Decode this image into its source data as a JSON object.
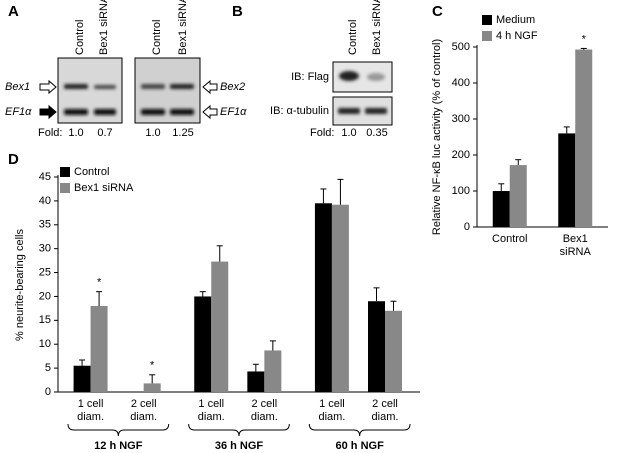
{
  "panel_letters": [
    "A",
    "B",
    "C",
    "D"
  ],
  "panel_a": {
    "column_labels": [
      "Control",
      "Bex1 siRNA",
      "Control",
      "Bex1 siRNA"
    ],
    "left_bands": [
      "Bex1",
      "EF1α"
    ],
    "right_bands": [
      "Bex2",
      "EF1α"
    ],
    "fold_label": "Fold:",
    "folds": [
      "1.0",
      "0.7",
      "1.0",
      "1.25"
    ]
  },
  "panel_b": {
    "column_labels": [
      "Control",
      "Bex1 siRNA"
    ],
    "blots": [
      "IB: Flag",
      "IB: α-tubulin"
    ],
    "fold_label": "Fold:",
    "folds": [
      "1.0",
      "0.35"
    ]
  },
  "chart_data": [
    {
      "type": "bar",
      "ylabel": "Relative NF-κB luc activity (% of control)",
      "categories": [
        "Control",
        "Bex1 siRNA"
      ],
      "series": [
        {
          "name": "Medium",
          "color": "#000000",
          "values": [
            100,
            260
          ],
          "errors": [
            20,
            18
          ]
        },
        {
          "name": "4 h NGF",
          "color": "#888888",
          "values": [
            172,
            493
          ],
          "errors": [
            15,
            3
          ]
        }
      ],
      "ylim": [
        0,
        500
      ],
      "yticks": [
        0,
        100,
        200,
        300,
        400,
        500
      ],
      "annotations": [
        {
          "text": "*",
          "series": "4 h NGF",
          "category_index": 1
        }
      ]
    },
    {
      "type": "bar",
      "ylabel": "% neurite-bearing cells",
      "categories": [
        "1 cell diam.",
        "2 cell diam.",
        "1 cell diam.",
        "2 cell diam.",
        "1 cell diam.",
        "2 cell diam."
      ],
      "groups": [
        "12 h NGF",
        "36 h NGF",
        "60 h NGF"
      ],
      "series": [
        {
          "name": "Control",
          "color": "#000000",
          "values": [
            5.5,
            0,
            20,
            4.3,
            39.5,
            19
          ],
          "errors": [
            1.2,
            null,
            1,
            1.5,
            3,
            2.8
          ]
        },
        {
          "name": "Bex1 siRNA",
          "color": "#888888",
          "values": [
            18,
            1.8,
            27.3,
            8.7,
            39.2,
            17
          ],
          "errors": [
            3,
            1.8,
            3.3,
            2,
            5.3,
            2
          ]
        }
      ],
      "ylim": [
        0,
        45
      ],
      "yticks": [
        0,
        5,
        10,
        15,
        20,
        25,
        30,
        35,
        40,
        45
      ],
      "annotations": [
        {
          "text": "*",
          "series": "Bex1 siRNA",
          "category_index": 0
        },
        {
          "text": "*",
          "series": "Bex1 siRNA",
          "category_index": 1
        }
      ]
    }
  ]
}
